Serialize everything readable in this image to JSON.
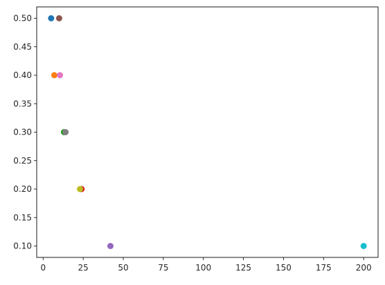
{
  "chart_data": {
    "type": "scatter",
    "title": "",
    "xlabel": "",
    "ylabel": "",
    "xlim": [
      -4,
      209
    ],
    "ylim": [
      0.08,
      0.52
    ],
    "grid": false,
    "legend": "none",
    "xticks": [
      0,
      25,
      50,
      75,
      100,
      125,
      150,
      175,
      200
    ],
    "xtick_labels": [
      "0",
      "25",
      "50",
      "75",
      "100",
      "125",
      "150",
      "175",
      "200"
    ],
    "yticks": [
      0.1,
      0.15,
      0.2,
      0.25,
      0.3,
      0.35,
      0.4,
      0.45,
      0.5
    ],
    "ytick_labels": [
      "0.10",
      "0.15",
      "0.20",
      "0.25",
      "0.30",
      "0.35",
      "0.40",
      "0.45",
      "0.50"
    ],
    "series": [
      {
        "color": "#1f77b4",
        "points": [
          {
            "x": 5,
            "y": 0.5
          }
        ]
      },
      {
        "color": "#ff7f0e",
        "points": [
          {
            "x": 7,
            "y": 0.4
          }
        ]
      },
      {
        "color": "#2ca02c",
        "points": [
          {
            "x": 13,
            "y": 0.3
          }
        ]
      },
      {
        "color": "#d62728",
        "points": [
          {
            "x": 24,
            "y": 0.2
          }
        ]
      },
      {
        "color": "#9467bd",
        "points": [
          {
            "x": 42,
            "y": 0.1
          }
        ]
      },
      {
        "color": "#8c564b",
        "points": [
          {
            "x": 10,
            "y": 0.5
          }
        ]
      },
      {
        "color": "#e377c2",
        "points": [
          {
            "x": 10.5,
            "y": 0.4
          }
        ]
      },
      {
        "color": "#7f7f7f",
        "points": [
          {
            "x": 14,
            "y": 0.3
          }
        ]
      },
      {
        "color": "#bcbd22",
        "points": [
          {
            "x": 23,
            "y": 0.2
          }
        ]
      },
      {
        "color": "#17becf",
        "points": [
          {
            "x": 200,
            "y": 0.1
          }
        ]
      }
    ]
  }
}
